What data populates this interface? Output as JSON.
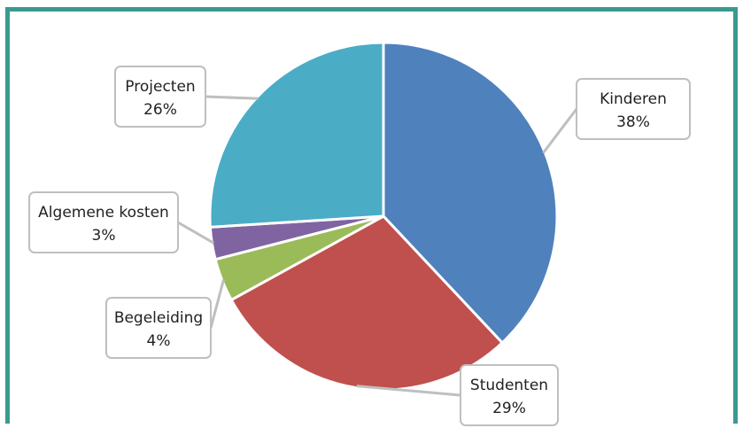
{
  "chart_data": {
    "type": "pie",
    "slices": [
      {
        "label": "Kinderen",
        "value": 38,
        "value_label": "38%",
        "color": "#4f81bd"
      },
      {
        "label": "Studenten",
        "value": 29,
        "value_label": "29%",
        "color": "#c0504d"
      },
      {
        "label": "Begeleiding",
        "value": 4,
        "value_label": "4%",
        "color": "#9bbb59"
      },
      {
        "label": "Algemene kosten",
        "value": 3,
        "value_label": "3%",
        "color": "#8064a2"
      },
      {
        "label": "Projecten",
        "value": 26,
        "value_label": "26%",
        "color": "#4bacc6"
      }
    ],
    "legend": "none",
    "data_labels": "callouts"
  },
  "colors": {
    "frame_border": "#3a9a8e",
    "callout_border": "#bfbfbf",
    "leader_line": "#bfbfbf"
  }
}
